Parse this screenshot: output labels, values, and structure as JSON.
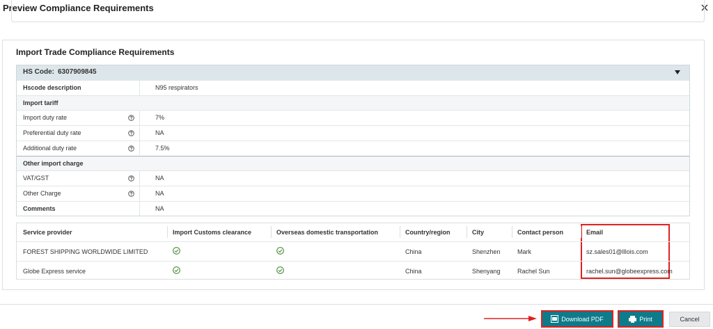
{
  "dialog": {
    "title": "Preview Compliance Requirements"
  },
  "section": {
    "title": "Import Trade Compliance Requirements"
  },
  "hs_table": {
    "label": "HS Code:",
    "code": "6307909845",
    "rows": [
      [
        "Hscode description",
        "N95 respirators"
      ]
    ],
    "groups": [
      {
        "title": "Import tariff",
        "rows": [
          [
            "Import duty rate",
            "7%"
          ],
          [
            "Preferential duty rate",
            "NA"
          ],
          [
            "Additional duty rate",
            "7.5%"
          ]
        ]
      },
      {
        "title": "Other import charge",
        "rows": [
          [
            "VAT/GST",
            "NA"
          ],
          [
            "Other Charge",
            "NA"
          ]
        ]
      }
    ],
    "comments": [
      "Comments",
      "NA"
    ]
  },
  "providers": {
    "headers": [
      "Service provider",
      "Import Customs clearance",
      "Overseas domestic transportation",
      "Country/region",
      "City",
      "Contact person",
      "Email"
    ],
    "rows": [
      [
        "FOREST SHIPPING WORLDWIDE LIMITED",
        true,
        true,
        "China",
        "Shenzhen",
        "Mark",
        "sz.sales01@lllois.com"
      ],
      [
        "Globe Express service",
        true,
        true,
        "China",
        "Shenyang",
        "Rachel Sun",
        "rachel.sun@globeexpress.com"
      ]
    ]
  },
  "buttons": {
    "download": "Download PDF",
    "print": "Print",
    "cancel": "Cancel"
  }
}
